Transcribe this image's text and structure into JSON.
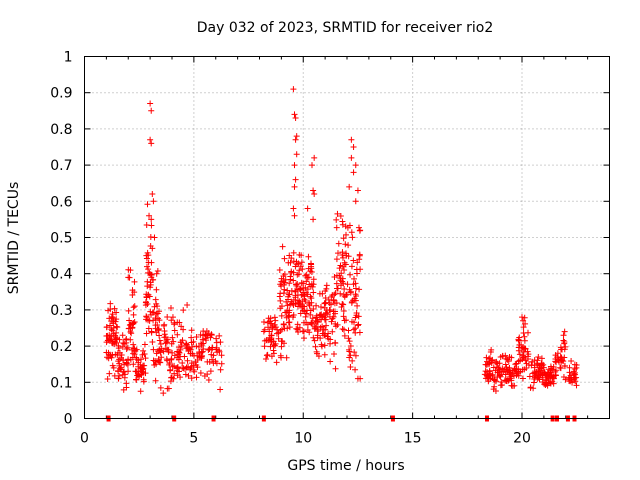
{
  "chart_data": {
    "type": "scatter",
    "title": "Day 032 of 2023, SRMTID for receiver rio2",
    "xlabel": "GPS time / hours",
    "ylabel": "SRMTID / TECUs",
    "xlim": [
      0,
      24
    ],
    "ylim": [
      0,
      1
    ],
    "grid": true,
    "marker": "+",
    "color": "#ff0000",
    "x_ticks": [
      0,
      5,
      10,
      15,
      20
    ],
    "x_tick_labels": [
      "0",
      "5",
      "10",
      "15",
      "20"
    ],
    "y_ticks": [
      0,
      0.1,
      0.2,
      0.3,
      0.4,
      0.5,
      0.6,
      0.7,
      0.8,
      0.9,
      1
    ],
    "y_tick_labels": [
      "0",
      "0.1",
      "0.2",
      "0.3",
      "0.4",
      "0.5",
      "0.6",
      "0.7",
      "0.8",
      "0.9",
      "1"
    ],
    "zero_markers_x": [
      1.1,
      4.1,
      5.9,
      8.2,
      14.1,
      18.4,
      21.4,
      21.6,
      22.1,
      22.4
    ],
    "envelope": [
      {
        "x": [
          1.0,
          1.5
        ],
        "y": [
          0.1,
          0.33
        ],
        "n": 60
      },
      {
        "x": [
          1.5,
          2.0
        ],
        "y": [
          0.07,
          0.25
        ],
        "n": 45
      },
      {
        "x": [
          2.0,
          2.3
        ],
        "y": [
          0.1,
          0.42
        ],
        "n": 35
      },
      {
        "x": [
          2.3,
          2.8
        ],
        "y": [
          0.06,
          0.22
        ],
        "n": 40
      },
      {
        "x": [
          2.8,
          3.1
        ],
        "y": [
          0.15,
          0.62
        ],
        "n": 45
      },
      {
        "x": [
          3.1,
          3.4
        ],
        "y": [
          0.08,
          0.42
        ],
        "n": 35
      },
      {
        "x": [
          3.4,
          4.0
        ],
        "y": [
          0.06,
          0.32
        ],
        "n": 45
      },
      {
        "x": [
          4.0,
          4.7
        ],
        "y": [
          0.08,
          0.33
        ],
        "n": 50
      },
      {
        "x": [
          4.7,
          5.5
        ],
        "y": [
          0.1,
          0.25
        ],
        "n": 55
      },
      {
        "x": [
          5.5,
          6.3
        ],
        "y": [
          0.08,
          0.28
        ],
        "n": 40
      },
      {
        "x": [
          8.2,
          8.9
        ],
        "y": [
          0.15,
          0.3
        ],
        "n": 45
      },
      {
        "x": [
          8.9,
          9.4
        ],
        "y": [
          0.15,
          0.48
        ],
        "n": 55
      },
      {
        "x": [
          9.4,
          10.0
        ],
        "y": [
          0.18,
          0.5
        ],
        "n": 65
      },
      {
        "x": [
          10.0,
          10.5
        ],
        "y": [
          0.2,
          0.45
        ],
        "n": 55
      },
      {
        "x": [
          10.5,
          11.0
        ],
        "y": [
          0.15,
          0.38
        ],
        "n": 45
      },
      {
        "x": [
          11.0,
          11.5
        ],
        "y": [
          0.12,
          0.42
        ],
        "n": 45
      },
      {
        "x": [
          11.5,
          12.0
        ],
        "y": [
          0.18,
          0.62
        ],
        "n": 55
      },
      {
        "x": [
          12.0,
          12.6
        ],
        "y": [
          0.1,
          0.6
        ],
        "n": 60
      },
      {
        "x": [
          18.3,
          19.0
        ],
        "y": [
          0.07,
          0.2
        ],
        "n": 55
      },
      {
        "x": [
          19.0,
          19.8
        ],
        "y": [
          0.08,
          0.18
        ],
        "n": 55
      },
      {
        "x": [
          19.8,
          20.3
        ],
        "y": [
          0.1,
          0.28
        ],
        "n": 45
      },
      {
        "x": [
          20.3,
          21.0
        ],
        "y": [
          0.08,
          0.18
        ],
        "n": 50
      },
      {
        "x": [
          21.0,
          21.5
        ],
        "y": [
          0.08,
          0.15
        ],
        "n": 35
      },
      {
        "x": [
          21.5,
          22.0
        ],
        "y": [
          0.09,
          0.24
        ],
        "n": 35
      },
      {
        "x": [
          22.1,
          22.5
        ],
        "y": [
          0.08,
          0.17
        ],
        "n": 25
      }
    ],
    "outliers": [
      {
        "x": 3.0,
        "y": 0.87
      },
      {
        "x": 3.05,
        "y": 0.85
      },
      {
        "x": 3.0,
        "y": 0.77
      },
      {
        "x": 3.05,
        "y": 0.76
      },
      {
        "x": 3.1,
        "y": 0.62
      },
      {
        "x": 3.15,
        "y": 0.6
      },
      {
        "x": 2.95,
        "y": 0.56
      },
      {
        "x": 3.05,
        "y": 0.55
      },
      {
        "x": 3.1,
        "y": 0.47
      },
      {
        "x": 3.2,
        "y": 0.5
      },
      {
        "x": 3.3,
        "y": 0.4
      },
      {
        "x": 2.1,
        "y": 0.41
      },
      {
        "x": 9.55,
        "y": 0.91
      },
      {
        "x": 9.6,
        "y": 0.84
      },
      {
        "x": 9.65,
        "y": 0.83
      },
      {
        "x": 9.7,
        "y": 0.78
      },
      {
        "x": 9.65,
        "y": 0.77
      },
      {
        "x": 9.7,
        "y": 0.73
      },
      {
        "x": 9.6,
        "y": 0.7
      },
      {
        "x": 9.65,
        "y": 0.66
      },
      {
        "x": 9.6,
        "y": 0.64
      },
      {
        "x": 9.55,
        "y": 0.58
      },
      {
        "x": 9.6,
        "y": 0.56
      },
      {
        "x": 10.5,
        "y": 0.72
      },
      {
        "x": 10.4,
        "y": 0.7
      },
      {
        "x": 10.45,
        "y": 0.63
      },
      {
        "x": 10.5,
        "y": 0.62
      },
      {
        "x": 10.45,
        "y": 0.55
      },
      {
        "x": 10.2,
        "y": 0.58
      },
      {
        "x": 12.2,
        "y": 0.77
      },
      {
        "x": 12.3,
        "y": 0.75
      },
      {
        "x": 12.2,
        "y": 0.72
      },
      {
        "x": 12.4,
        "y": 0.7
      },
      {
        "x": 12.3,
        "y": 0.68
      },
      {
        "x": 12.1,
        "y": 0.64
      },
      {
        "x": 12.5,
        "y": 0.63
      },
      {
        "x": 12.4,
        "y": 0.6
      },
      {
        "x": 12.6,
        "y": 0.52
      },
      {
        "x": 12.5,
        "y": 0.11
      },
      {
        "x": 12.6,
        "y": 0.11
      },
      {
        "x": 11.2,
        "y": 0.3
      },
      {
        "x": 10.0,
        "y": 0.36
      },
      {
        "x": 20.0,
        "y": 0.28
      },
      {
        "x": 20.05,
        "y": 0.27
      },
      {
        "x": 21.95,
        "y": 0.24
      },
      {
        "x": 21.9,
        "y": 0.23
      },
      {
        "x": 6.2,
        "y": 0.08
      },
      {
        "x": 3.6,
        "y": 0.07
      }
    ]
  }
}
